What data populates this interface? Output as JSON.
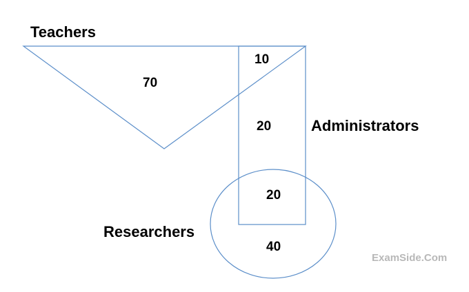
{
  "sets": {
    "teachers": "Teachers",
    "administrators": "Administrators",
    "researchers": "Researchers"
  },
  "regions": {
    "teachers_only": "70",
    "teachers_and_administrators": "10",
    "administrators_only": "20",
    "administrators_and_researchers": "20",
    "researchers_only": "40"
  },
  "watermark": "ExamSide.Com",
  "colors": {
    "outline": "#5b8ec9",
    "watermark": "#b8b8b8"
  }
}
